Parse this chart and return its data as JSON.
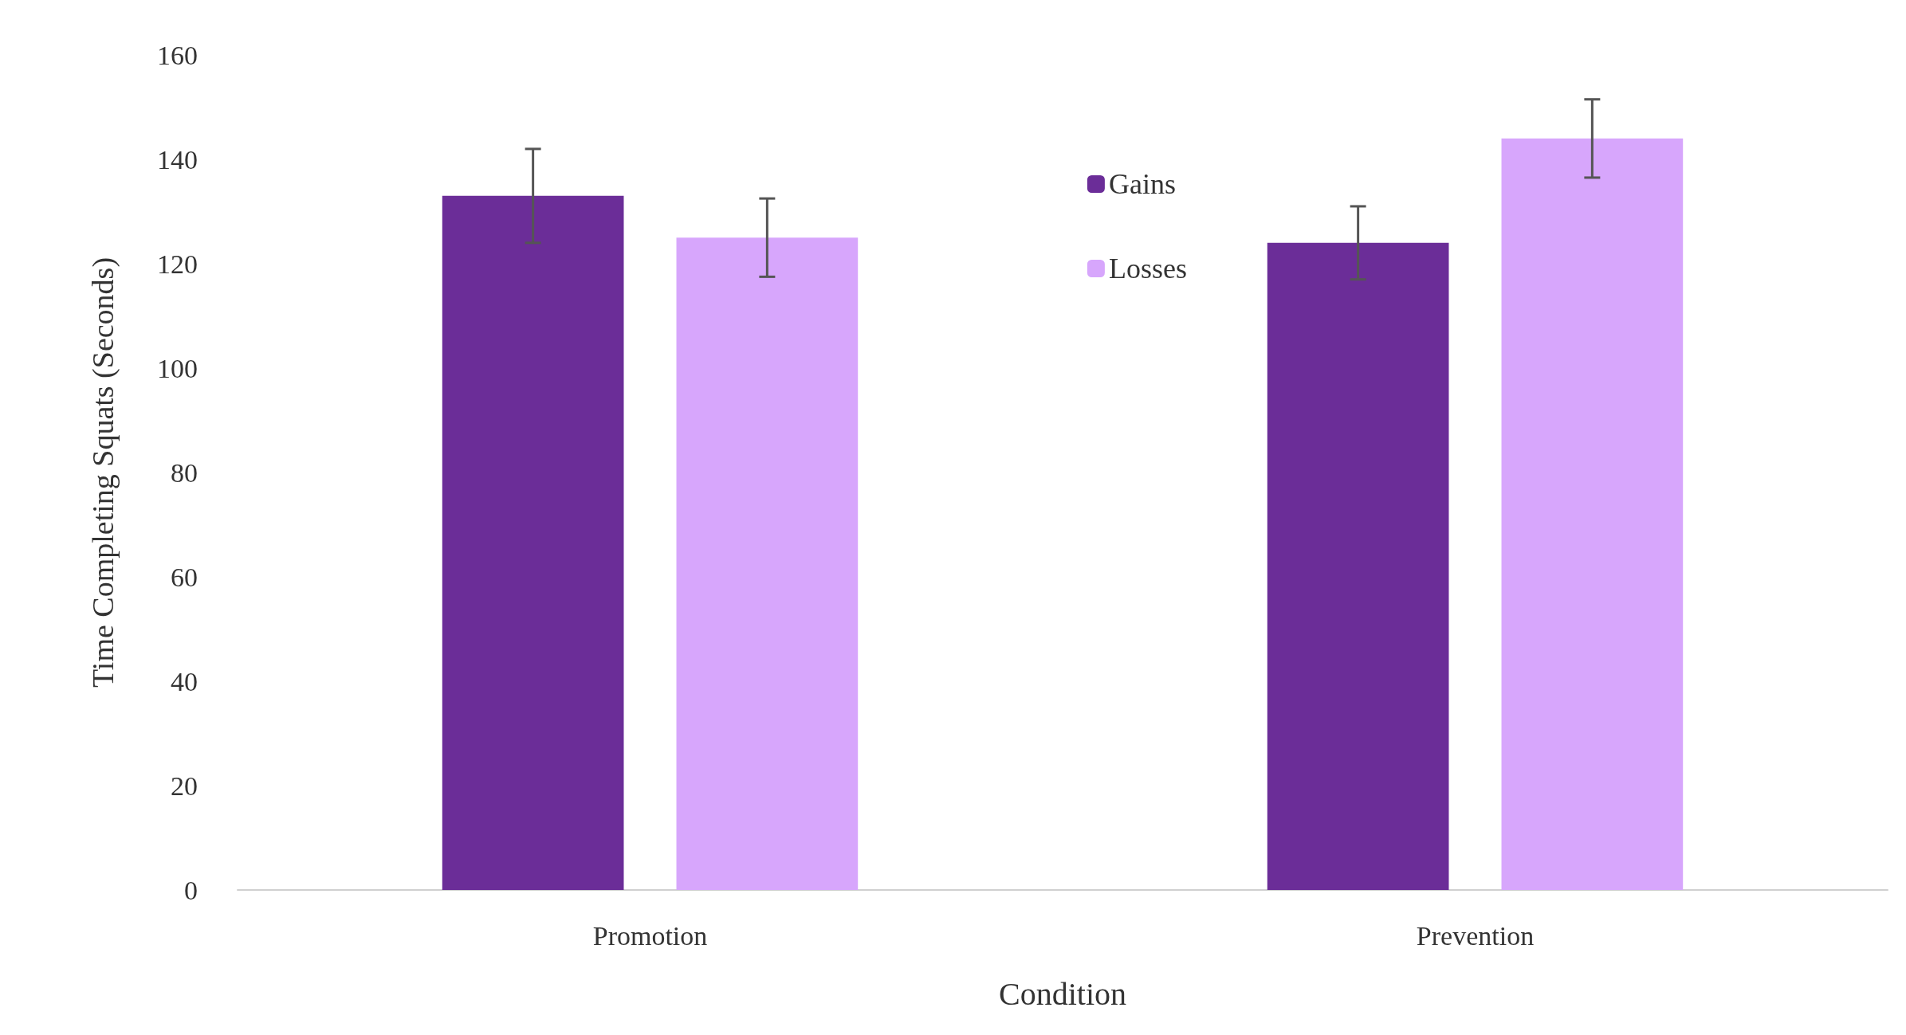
{
  "chart_data": {
    "type": "bar",
    "xlabel": "Condition",
    "ylabel": "Time Completing Squats (Seconds)",
    "categories": [
      "Promotion",
      "Prevention"
    ],
    "series": [
      {
        "name": "Gains",
        "color": "#6b2d98",
        "values": [
          133,
          124
        ],
        "errors": [
          9,
          7
        ]
      },
      {
        "name": "Losses",
        "color": "#d7a6fc",
        "values": [
          125,
          144
        ],
        "errors": [
          7.5,
          7.5
        ]
      }
    ],
    "ylim": [
      0,
      160
    ],
    "yticks": [
      0,
      20,
      40,
      60,
      80,
      100,
      120,
      140,
      160
    ],
    "grid": false,
    "legend": "top"
  }
}
